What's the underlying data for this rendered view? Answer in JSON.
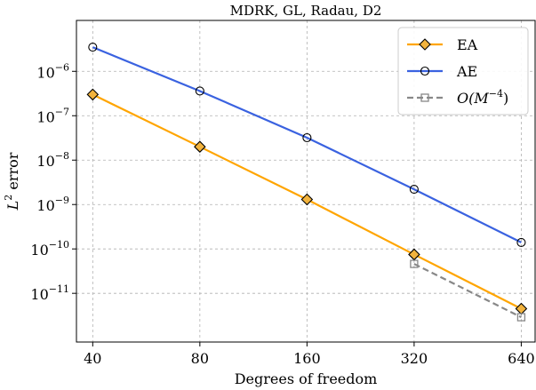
{
  "chart_data": {
    "type": "line",
    "title": "MDRK, GL, Radau, D2",
    "xlabel": "Degrees of freedom",
    "ylabel_main": "L",
    "ylabel_sup": "2",
    "ylabel_rest": " error",
    "xscale": "log2",
    "yscale": "log10",
    "xlim": [
      36,
      700
    ],
    "ylim": [
      8e-13,
      1.4e-05
    ],
    "xticks": [
      40,
      80,
      160,
      320,
      640
    ],
    "xtick_labels": [
      "40",
      "80",
      "160",
      "320",
      "640"
    ],
    "yticks": [
      1e-11,
      1e-10,
      1e-09,
      1e-08,
      1e-07,
      1e-06
    ],
    "ytick_base": "10",
    "ytick_exps": [
      "−11",
      "−10",
      "−9",
      "−8",
      "−7",
      "−6"
    ],
    "grid": true,
    "legend_position": "top-right",
    "series": [
      {
        "name": "EA",
        "color": "#FFA500",
        "marker": "diamond",
        "marker_face": "#F2B33D",
        "line_style": "solid",
        "x": [
          40,
          80,
          160,
          320,
          640
        ],
        "y": [
          3e-07,
          2e-08,
          1.3e-09,
          7.5e-11,
          4.5e-12
        ]
      },
      {
        "name": "AE",
        "color": "#3A62E0",
        "marker": "circle",
        "marker_face": "none",
        "line_style": "solid",
        "x": [
          40,
          80,
          160,
          320,
          640
        ],
        "y": [
          3.5e-06,
          3.6e-07,
          3.2e-08,
          2.2e-09,
          1.4e-10
        ]
      },
      {
        "name_prefix": "O(M",
        "name_exp": "−4",
        "name_suffix": ")",
        "color": "#888888",
        "marker": "square",
        "marker_face": "none",
        "line_style": "dashed",
        "x": [
          320,
          640
        ],
        "y": [
          4.6e-11,
          2.9e-12
        ]
      }
    ]
  }
}
